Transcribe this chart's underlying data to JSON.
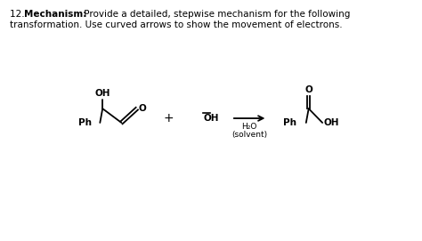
{
  "bg_color": "#ffffff",
  "text_color": "#000000",
  "figsize": [
    4.74,
    2.71
  ],
  "dpi": 100,
  "title_line1_normal": "12. ",
  "title_line1_bold": "Mechanism:",
  "title_line1_rest": " Provide a detailed, stepwise mechanism for the following",
  "title_line2": "transformation. Use curved arrows to show the movement of electrons.",
  "plus_sign": "+",
  "arrow_label1": "H₂O",
  "arrow_label2": "(solvent)",
  "ph1": "Ph",
  "oh1": "OH",
  "o1": "O",
  "minus_oh": "̅OH",
  "ph2": "Ph",
  "o2": "O",
  "oh2": "OH"
}
